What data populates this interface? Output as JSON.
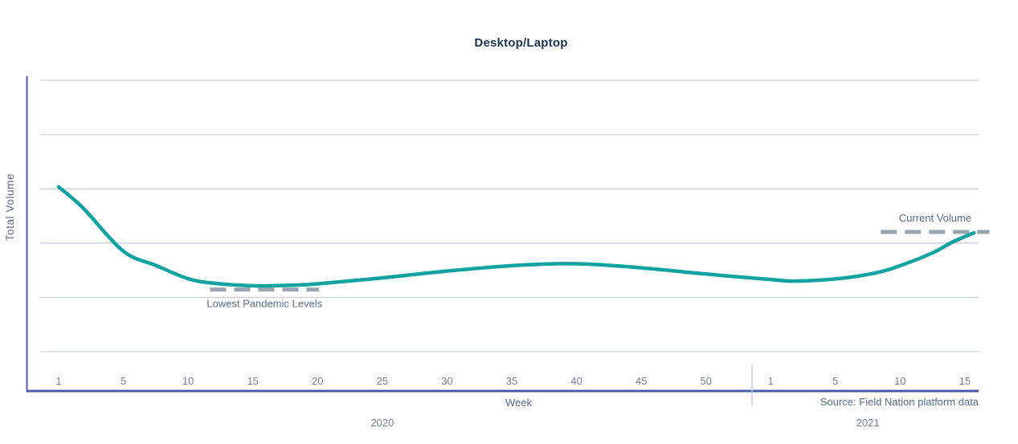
{
  "chart_data": {
    "type": "line",
    "title": "Desktop/Laptop",
    "xlabel": "Week",
    "ylabel": "Total Volume",
    "source_note": "Source: Field Nation platform data",
    "x_axis": {
      "groups": [
        {
          "year": "2020",
          "ticks": [
            1,
            5,
            10,
            15,
            20,
            25,
            30,
            35,
            40,
            45,
            50
          ]
        },
        {
          "year": "2021",
          "ticks": [
            1,
            5,
            10,
            15
          ]
        }
      ],
      "year_divider": true
    },
    "y_axis": {
      "ticks_visible": false,
      "range": [
        0,
        100
      ],
      "note": "relative volume index; y-axis has no tick labels in chart"
    },
    "series": [
      {
        "name": "Total Volume",
        "color": "#11a3a1",
        "points": [
          {
            "year": "2020",
            "week": 1,
            "value": 60.7
          },
          {
            "year": "2020",
            "week": 2.5,
            "value": 53.0
          },
          {
            "year": "2020",
            "week": 5,
            "value": 37.0
          },
          {
            "year": "2020",
            "week": 7.5,
            "value": 31.8
          },
          {
            "year": "2020",
            "week": 10,
            "value": 26.9
          },
          {
            "year": "2020",
            "week": 12,
            "value": 25.2
          },
          {
            "year": "2020",
            "week": 15,
            "value": 24.3
          },
          {
            "year": "2020",
            "week": 18,
            "value": 24.5
          },
          {
            "year": "2020",
            "week": 20,
            "value": 25.0
          },
          {
            "year": "2020",
            "week": 25,
            "value": 27.2
          },
          {
            "year": "2020",
            "week": 30,
            "value": 29.7
          },
          {
            "year": "2020",
            "week": 35,
            "value": 31.7
          },
          {
            "year": "2020",
            "week": 40,
            "value": 32.4
          },
          {
            "year": "2020",
            "week": 45,
            "value": 30.9
          },
          {
            "year": "2020",
            "week": 50,
            "value": 28.6
          },
          {
            "year": "2021",
            "week": 1,
            "value": 26.6
          },
          {
            "year": "2021",
            "week": 2.5,
            "value": 26.0
          },
          {
            "year": "2021",
            "week": 5,
            "value": 26.8
          },
          {
            "year": "2021",
            "week": 8,
            "value": 28.9
          },
          {
            "year": "2021",
            "week": 10,
            "value": 31.7
          },
          {
            "year": "2021",
            "week": 12.5,
            "value": 36.4
          },
          {
            "year": "2021",
            "week": 14,
            "value": 40.3
          },
          {
            "year": "2021",
            "week": 15.7,
            "value": 43.8
          }
        ]
      }
    ],
    "annotations": [
      {
        "id": "lowest-pandemic-levels",
        "label": "Lowest Pandemic Levels",
        "value": 22.9,
        "year": "2020",
        "week_start": 11.7,
        "week_end": 20.1,
        "label_position": "below"
      },
      {
        "id": "current-volume",
        "label": "Current Volume",
        "value": 44.1,
        "year": "2021",
        "week_start": 8.5,
        "week_end": 16.9,
        "label_position": "above"
      }
    ],
    "colors": {
      "line": "#11a3a1",
      "annotation_dash": "#9aa5b4",
      "axis": "#4d59a8",
      "grid": "#ccd1dd",
      "divider": "#c5cbd9",
      "title_text": "#1d3150",
      "label_text": "#586c8e",
      "tick_text": "#747f9b"
    },
    "layout": {
      "grid": true,
      "legend": "none"
    }
  }
}
